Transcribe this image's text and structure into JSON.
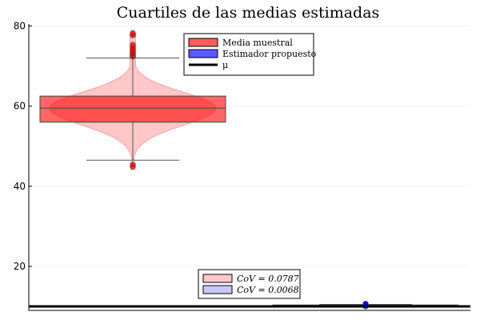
{
  "chart_data": {
    "type": "box_violin",
    "title": "Cuartiles de las medias estimadas",
    "ylim": [
      9,
      80.5
    ],
    "yticks": [
      20,
      40,
      60,
      80
    ],
    "grid": true,
    "legend": {
      "position": "top-center",
      "entries": [
        {
          "label": "Media muestral",
          "color": "#ff5a5a",
          "kind": "box"
        },
        {
          "label": "Estimador propuesto",
          "color": "#5a5aff",
          "kind": "box"
        },
        {
          "label": "μ",
          "color": "#000000",
          "kind": "line"
        }
      ]
    },
    "cov_legend": {
      "position": "bottom-center",
      "entries": [
        {
          "label": "CoV = 0.0787",
          "color": "#ffc8c8"
        },
        {
          "label": "CoV = 0.0068",
          "color": "#c8c8ff"
        }
      ]
    },
    "mu": 10,
    "series": [
      {
        "name": "Media muestral",
        "color": "#ff0000",
        "violin_min": 45,
        "violin_max": 78,
        "q1": 56,
        "median": 59.5,
        "q3": 62.5,
        "whisker_low": 46.5,
        "whisker_high": 72,
        "outliers": [
          44.8,
          45.4,
          72.4,
          72.9,
          73.4,
          74,
          74.6,
          75.3,
          77.7,
          78.2
        ]
      },
      {
        "name": "Estimador propuesto",
        "color": "#0000ff",
        "violin_min": 9.9,
        "violin_max": 10.7,
        "q1": 10.05,
        "median": 10.2,
        "q3": 10.35,
        "whisker_low": 9.95,
        "whisker_high": 10.5,
        "outliers": [
          10.0,
          10.55,
          10.65
        ]
      }
    ]
  }
}
